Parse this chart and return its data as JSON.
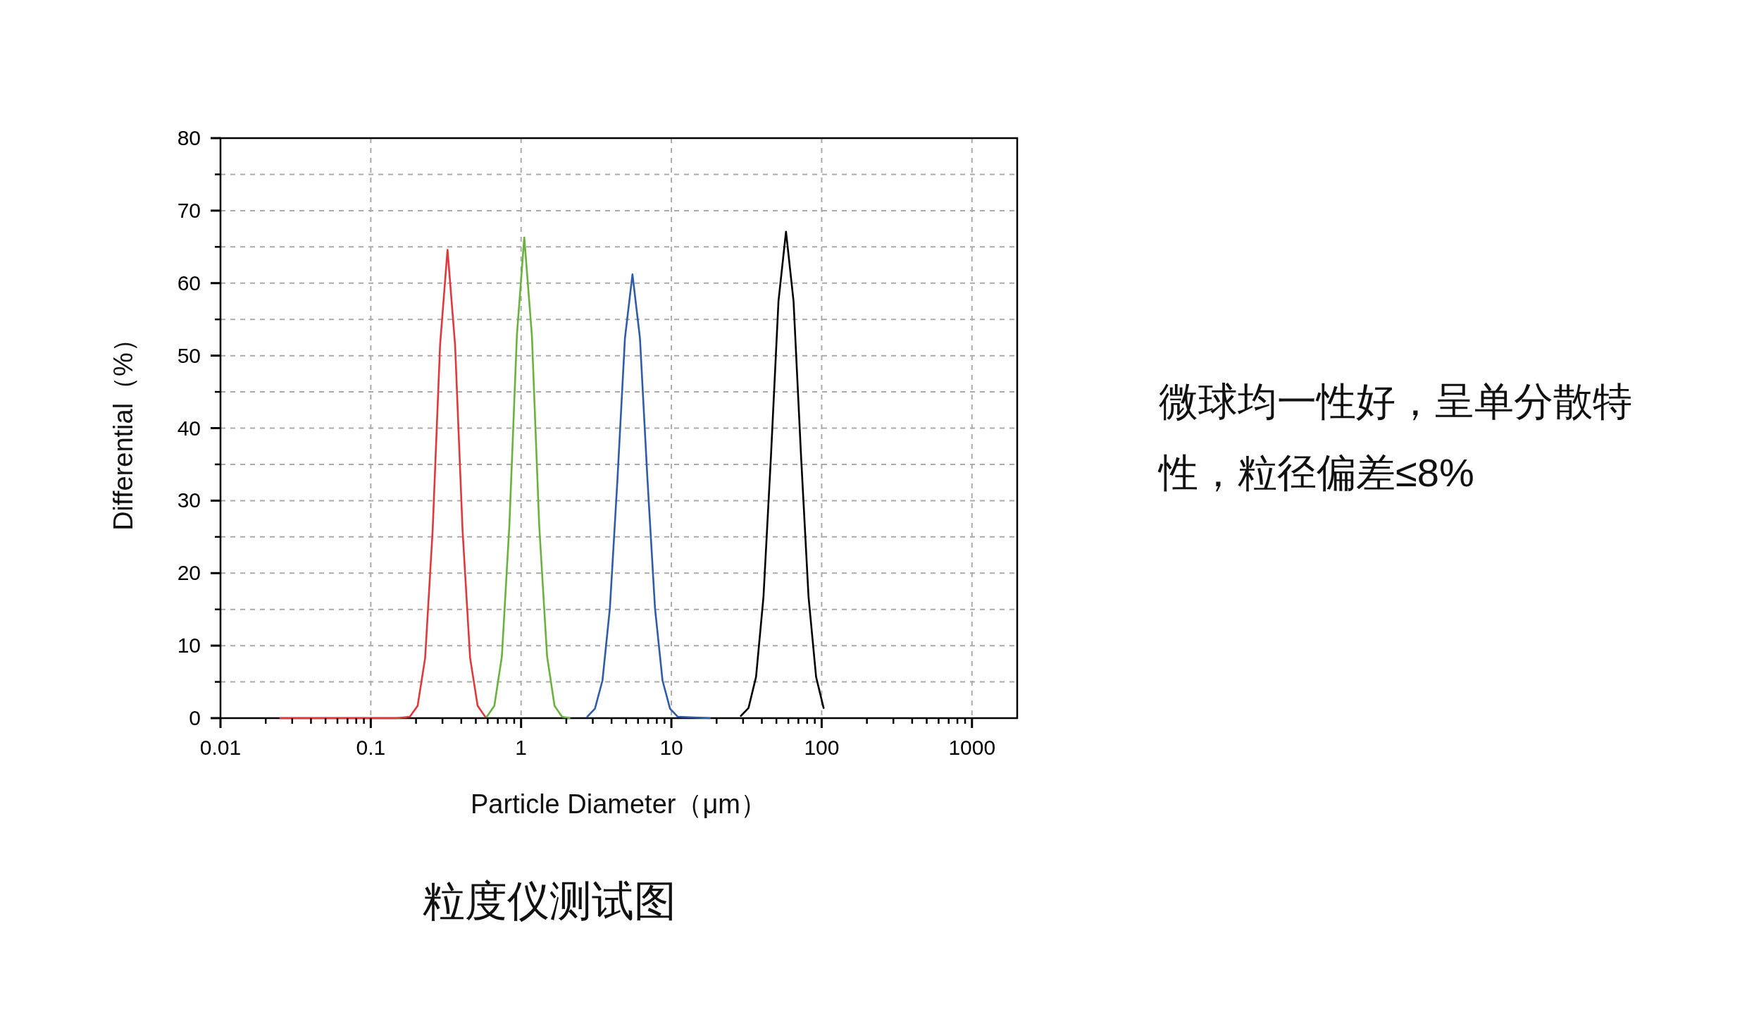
{
  "chart_data": {
    "type": "line",
    "xlabel": "Particle Diameter（μm）",
    "ylabel": "Differential（%）",
    "log": "x",
    "xlim": [
      0.01,
      2000
    ],
    "ylim": [
      0,
      80
    ],
    "xticks": [
      {
        "value": 0.01,
        "label": "0.01"
      },
      {
        "value": 0.1,
        "label": "0.1"
      },
      1,
      10,
      100,
      1000
    ],
    "yticks": [
      0,
      10,
      20,
      30,
      40,
      50,
      60,
      70,
      80
    ],
    "grid": true,
    "series": [
      {
        "color": "#e0393b",
        "x": [
          0.025,
          0.15,
          0.182,
          0.205,
          0.23,
          0.258,
          0.289,
          0.324,
          0.364,
          0.408,
          0.458,
          0.514,
          0.577
        ],
        "values": [
          0,
          0,
          0.2,
          1.7,
          8.3,
          25.9,
          51.4,
          64.6,
          51.4,
          25.9,
          8.3,
          1.7,
          0.2
        ]
      },
      {
        "color": "#6ab23e",
        "x": [
          0.592,
          0.664,
          0.745,
          0.836,
          0.938,
          1.05,
          1.18,
          1.32,
          1.49,
          1.67,
          1.87,
          2.1
        ],
        "values": [
          0.2,
          1.7,
          8.5,
          26.6,
          52.8,
          66.3,
          52.8,
          26.6,
          8.5,
          1.7,
          0.2,
          0
        ]
      },
      {
        "color": "#2f5ca8",
        "x": [
          2.76,
          3.1,
          3.48,
          3.9,
          4.38,
          4.91,
          5.51,
          6.18,
          6.93,
          7.78,
          8.73,
          9.8,
          11,
          18
        ],
        "values": [
          0.2,
          1.3,
          5.2,
          15.2,
          33,
          52.4,
          61.2,
          52.4,
          33,
          15.2,
          5.2,
          1.3,
          0.2,
          0
        ]
      },
      {
        "color": "#000000",
        "x": [
          29,
          32.6,
          36.6,
          41,
          46,
          51.6,
          57.9,
          65,
          72.9,
          81.8,
          91.8,
          103
        ],
        "values": [
          0.3,
          1.4,
          5.7,
          16.7,
          36.2,
          57.5,
          67.1,
          57.5,
          36.2,
          16.7,
          5.7,
          1.4
        ]
      }
    ],
    "annotations": [
      "微球均一性好，呈单分散特性，粒径偏差≤8%",
      "粒度仪测试图"
    ]
  }
}
